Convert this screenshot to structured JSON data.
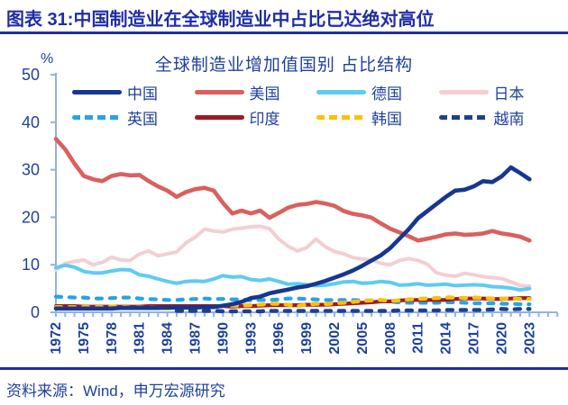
{
  "page": {
    "heading": "图表 31:中国制造业在全球制造业中占比已达绝对高位",
    "source": "资料来源：Wind，申万宏源研究"
  },
  "colors": {
    "heading_ink": "#202ea4",
    "label_ink": "#1e419f",
    "axis_line": "#8fb3e2"
  },
  "chart_data": {
    "type": "line",
    "title": "全球制造业增加值国别 占比结构",
    "y_unit_label": "%",
    "ylim": [
      0,
      50
    ],
    "y_ticks": [
      0,
      10,
      20,
      30,
      40,
      50
    ],
    "grid": false,
    "legend_position": "top-inside",
    "x": [
      1972,
      1973,
      1974,
      1975,
      1976,
      1977,
      1978,
      1979,
      1980,
      1981,
      1982,
      1983,
      1984,
      1985,
      1986,
      1987,
      1988,
      1989,
      1990,
      1991,
      1992,
      1993,
      1994,
      1995,
      1996,
      1997,
      1998,
      1999,
      2000,
      2001,
      2002,
      2003,
      2004,
      2005,
      2006,
      2007,
      2008,
      2009,
      2010,
      2011,
      2012,
      2013,
      2014,
      2015,
      2016,
      2017,
      2018,
      2019,
      2020,
      2021,
      2022,
      2023
    ],
    "x_tick_labels": [
      "1972",
      "1975",
      "1978",
      "1981",
      "1984",
      "1987",
      "1990",
      "1993",
      "1996",
      "1999",
      "2002",
      "2005",
      "2008",
      "2011",
      "2014",
      "2017",
      "2020",
      "2023"
    ],
    "series": [
      {
        "name": "中国",
        "id": "china",
        "color": "#17378f",
        "style": "solid",
        "width": 4.6,
        "draw_order": 8,
        "values": [
          0.8,
          0.8,
          0.8,
          0.8,
          0.8,
          0.8,
          0.8,
          0.9,
          0.9,
          0.9,
          0.9,
          0.9,
          1.0,
          1.0,
          1.0,
          1.0,
          1.1,
          1.1,
          1.4,
          1.7,
          2.2,
          3.0,
          3.3,
          4.0,
          4.4,
          4.8,
          5.2,
          5.5,
          6.0,
          6.6,
          7.3,
          8.0,
          8.8,
          9.8,
          10.9,
          12.0,
          13.5,
          15.5,
          17.5,
          19.8,
          21.3,
          22.8,
          24.3,
          25.6,
          25.8,
          26.5,
          27.6,
          27.4,
          28.6,
          30.5,
          29.3,
          28.0
        ]
      },
      {
        "name": "美国",
        "id": "usa",
        "color": "#d9605f",
        "style": "solid",
        "width": 4.6,
        "draw_order": 7,
        "values": [
          36.5,
          34.3,
          31.3,
          28.7,
          28.0,
          27.6,
          28.7,
          29.1,
          28.8,
          28.9,
          27.6,
          26.5,
          25.6,
          24.3,
          25.3,
          25.9,
          26.2,
          25.6,
          23.0,
          20.8,
          21.4,
          20.8,
          21.4,
          19.9,
          20.9,
          22.0,
          22.6,
          22.8,
          23.2,
          22.9,
          22.4,
          21.3,
          20.7,
          20.4,
          19.9,
          18.7,
          17.6,
          16.8,
          16.0,
          15.1,
          15.5,
          15.9,
          16.4,
          16.6,
          16.3,
          16.4,
          16.6,
          17.1,
          16.6,
          16.3,
          15.9,
          15.1
        ]
      },
      {
        "name": "德国",
        "id": "germany",
        "color": "#5ecbf2",
        "style": "solid",
        "width": 4.0,
        "draw_order": 2,
        "values": [
          9.4,
          9.9,
          9.5,
          8.6,
          8.3,
          8.3,
          8.7,
          9.0,
          8.9,
          7.9,
          7.6,
          7.0,
          6.5,
          6.1,
          6.5,
          6.6,
          6.5,
          7.0,
          7.7,
          7.4,
          7.5,
          6.9,
          6.7,
          7.0,
          6.5,
          5.9,
          6.0,
          5.8,
          5.6,
          5.7,
          6.0,
          6.4,
          6.5,
          6.1,
          6.2,
          6.5,
          6.3,
          5.7,
          5.8,
          6.0,
          5.7,
          5.8,
          5.9,
          5.6,
          5.7,
          5.8,
          5.7,
          5.4,
          5.3,
          5.1,
          4.7,
          5.0
        ]
      },
      {
        "name": "日本",
        "id": "japan",
        "color": "#f3ced2",
        "style": "solid",
        "width": 4.0,
        "draw_order": 1,
        "values": [
          8.9,
          10.3,
          10.7,
          11.0,
          10.0,
          10.5,
          11.6,
          11.0,
          10.9,
          12.3,
          12.9,
          11.9,
          12.3,
          12.7,
          14.6,
          15.8,
          17.5,
          17.1,
          16.9,
          17.5,
          17.7,
          18.0,
          18.1,
          17.6,
          15.4,
          13.9,
          12.9,
          13.6,
          15.4,
          13.8,
          12.8,
          12.3,
          11.5,
          11.2,
          11.0,
          10.3,
          10.0,
          10.9,
          11.3,
          10.9,
          10.1,
          8.3,
          7.8,
          7.6,
          8.2,
          7.9,
          7.5,
          7.3,
          7.1,
          6.4,
          5.6,
          5.5
        ]
      },
      {
        "name": "英国",
        "id": "uk",
        "color": "#25a3e9",
        "style": "dashed",
        "width": 4.2,
        "draw_order": 3,
        "values": [
          3.3,
          3.2,
          3.1,
          3.1,
          2.9,
          2.9,
          3.0,
          3.1,
          3.1,
          2.9,
          2.8,
          2.7,
          2.6,
          2.6,
          2.7,
          2.8,
          2.9,
          2.8,
          2.8,
          2.7,
          2.7,
          2.5,
          2.6,
          2.6,
          2.7,
          2.9,
          2.9,
          2.8,
          2.7,
          2.6,
          2.6,
          2.6,
          2.6,
          2.5,
          2.5,
          2.5,
          2.2,
          2.1,
          2.0,
          2.0,
          2.0,
          2.0,
          2.1,
          2.1,
          2.0,
          1.9,
          1.9,
          1.9,
          1.8,
          1.8,
          1.7,
          1.7
        ]
      },
      {
        "name": "印度",
        "id": "india",
        "color": "#9e1a23",
        "style": "solid",
        "width": 4.2,
        "draw_order": 4,
        "values": [
          1.3,
          1.3,
          1.3,
          1.2,
          1.2,
          1.2,
          1.2,
          1.2,
          1.2,
          1.2,
          1.3,
          1.3,
          1.3,
          1.3,
          1.3,
          1.3,
          1.3,
          1.3,
          1.3,
          1.2,
          1.3,
          1.3,
          1.4,
          1.5,
          1.5,
          1.5,
          1.5,
          1.6,
          1.6,
          1.6,
          1.7,
          1.8,
          1.9,
          2.0,
          2.1,
          2.3,
          2.3,
          2.5,
          2.6,
          2.6,
          2.6,
          2.6,
          2.6,
          2.8,
          2.9,
          2.9,
          2.9,
          2.8,
          2.8,
          2.9,
          3.0,
          3.0
        ]
      },
      {
        "name": "韩国",
        "id": "korea",
        "color": "#fdc008",
        "style": "dashed",
        "width": 4.4,
        "draw_order": 5,
        "values": [
          1.1,
          1.1,
          1.1,
          1.1,
          1.1,
          1.1,
          1.2,
          1.1,
          1.0,
          1.0,
          1.0,
          0.9,
          0.8,
          0.8,
          0.8,
          0.9,
          1.0,
          1.2,
          1.3,
          1.4,
          1.4,
          1.5,
          1.6,
          1.8,
          1.8,
          1.6,
          1.3,
          1.6,
          1.8,
          1.7,
          1.9,
          2.0,
          2.2,
          2.4,
          2.5,
          2.6,
          2.4,
          2.5,
          2.7,
          2.8,
          2.9,
          3.0,
          3.1,
          3.1,
          3.0,
          3.1,
          3.0,
          2.9,
          2.9,
          2.9,
          2.8,
          2.8
        ]
      },
      {
        "name": "越南",
        "id": "vietnam",
        "color": "#1d4095",
        "style": "dashed",
        "width": 4.4,
        "draw_order": 6,
        "values": [
          null,
          null,
          null,
          null,
          null,
          null,
          null,
          null,
          null,
          null,
          null,
          null,
          null,
          0.3,
          0.3,
          0.3,
          0.3,
          0.3,
          0.2,
          0.2,
          0.2,
          0.2,
          0.2,
          0.3,
          0.3,
          0.3,
          0.3,
          0.3,
          0.3,
          0.3,
          0.3,
          0.3,
          0.3,
          0.3,
          0.3,
          0.3,
          0.3,
          0.4,
          0.4,
          0.4,
          0.4,
          0.4,
          0.5,
          0.5,
          0.5,
          0.5,
          0.5,
          0.6,
          0.7,
          0.6,
          0.7,
          0.7
        ]
      }
    ]
  }
}
